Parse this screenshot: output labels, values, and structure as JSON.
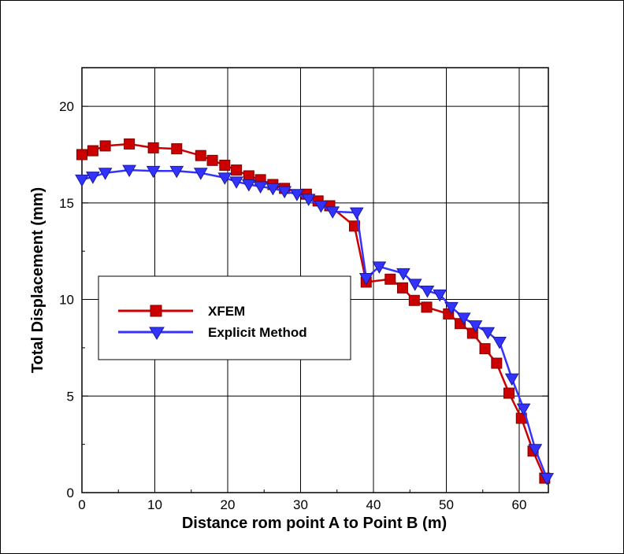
{
  "chart_data": {
    "type": "line",
    "title": "",
    "xlabel": "Distance rom point A to Point B (m)",
    "ylabel": "Total Displacement (mm)",
    "xlim": [
      0,
      64
    ],
    "ylim": [
      0,
      22
    ],
    "x_ticks": [
      0,
      10,
      20,
      30,
      40,
      50,
      60
    ],
    "y_ticks": [
      0,
      5,
      10,
      15,
      20
    ],
    "x_tick_labels": [
      "0",
      "10",
      "20",
      "30",
      "40",
      "50",
      "60"
    ],
    "y_tick_labels": [
      "0",
      "5",
      "10",
      "15",
      "20"
    ],
    "grid": true,
    "legend_position": "center-left",
    "series": [
      {
        "name": "XFEM",
        "color": "#cc0000",
        "marker": "square",
        "x": [
          0,
          1.5,
          3.2,
          6.5,
          9.8,
          13.0,
          16.3,
          17.9,
          19.6,
          21.2,
          22.9,
          24.5,
          26.2,
          27.8,
          30.8,
          32.4,
          34.0,
          37.4,
          39.0,
          42.3,
          44.0,
          45.6,
          47.3,
          50.3,
          51.9,
          53.6,
          55.3,
          56.9,
          58.6,
          60.3,
          61.9,
          63.5
        ],
        "y": [
          17.5,
          17.7,
          17.95,
          18.05,
          17.85,
          17.8,
          17.45,
          17.2,
          16.95,
          16.7,
          16.4,
          16.2,
          15.95,
          15.75,
          15.45,
          15.1,
          14.85,
          13.8,
          10.9,
          11.05,
          10.6,
          9.95,
          9.6,
          9.25,
          8.75,
          8.25,
          7.45,
          6.7,
          5.15,
          3.85,
          2.15,
          0.75
        ]
      },
      {
        "name": "Explicit Method",
        "color": "#3333ff",
        "marker": "triangle-down",
        "x": [
          0,
          1.5,
          3.2,
          6.5,
          9.8,
          13.0,
          16.3,
          19.6,
          21.2,
          22.9,
          24.5,
          26.2,
          27.8,
          29.5,
          31.1,
          32.8,
          34.4,
          37.7,
          39.0,
          40.8,
          44.1,
          45.7,
          47.4,
          49.1,
          50.7,
          52.4,
          54.0,
          55.7,
          57.3,
          59.0,
          60.6,
          62.2,
          63.8
        ],
        "y": [
          16.2,
          16.35,
          16.55,
          16.7,
          16.65,
          16.65,
          16.55,
          16.3,
          16.1,
          15.95,
          15.85,
          15.75,
          15.6,
          15.45,
          15.2,
          14.85,
          14.55,
          14.5,
          11.1,
          11.7,
          11.35,
          10.8,
          10.45,
          10.25,
          9.6,
          9.05,
          8.65,
          8.3,
          7.8,
          5.9,
          4.35,
          2.25,
          0.75
        ]
      }
    ]
  }
}
